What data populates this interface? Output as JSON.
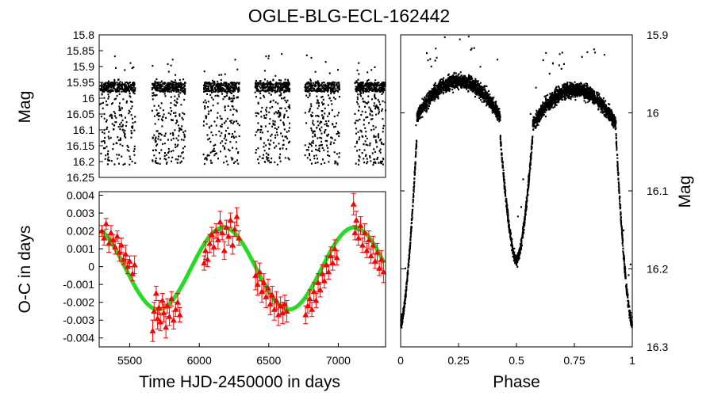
{
  "figure": {
    "title": "OGLE-BLG-ECL-162442"
  },
  "chart_data": [
    {
      "type": "scatter",
      "panel": "light-curve-time",
      "xlabel": "",
      "ylabel": "Mag",
      "xlim": [
        5280,
        7340
      ],
      "ylim": [
        16.25,
        15.8
      ],
      "y_inverted": true,
      "y_ticks": [
        "15.8",
        "15.85",
        "15.9",
        "15.95",
        "16",
        "16.05",
        "16.1",
        "16.15",
        "16.2",
        "16.25"
      ],
      "point_color": "#000000",
      "seasons": [
        {
          "x_start": 5285,
          "x_end": 5540
        },
        {
          "x_start": 5660,
          "x_end": 5900
        },
        {
          "x_start": 6030,
          "x_end": 6290
        },
        {
          "x_start": 6400,
          "x_end": 6650
        },
        {
          "x_start": 6760,
          "x_end": 7010
        },
        {
          "x_start": 7120,
          "x_end": 7340
        }
      ],
      "mag_range": [
        15.94,
        16.21
      ]
    },
    {
      "type": "scatter",
      "panel": "eclipse-timing",
      "xlabel": "Time HJD-2450000 in days",
      "ylabel": "O-C in days",
      "xlim": [
        5280,
        7340
      ],
      "ylim": [
        -0.0045,
        0.0042
      ],
      "x_ticks": [
        "5500",
        "6000",
        "6500",
        "7000"
      ],
      "y_ticks": [
        "0.004",
        "0.003",
        "0.002",
        "0.001",
        "0",
        "-0.001",
        "-0.002",
        "-0.003",
        "-0.004"
      ],
      "fit_color": "#22dd22",
      "point_color": "#ff0000",
      "fit": {
        "name": "",
        "amplitude": 0.0023,
        "period_days": 940,
        "peak_x": 6175,
        "offset": -0.0001
      },
      "points": [
        {
          "x": 5300,
          "y": 0.002,
          "err": 0.0003
        },
        {
          "x": 5315,
          "y": 0.0016,
          "err": 0.0004
        },
        {
          "x": 5330,
          "y": 0.0024,
          "err": 0.0003
        },
        {
          "x": 5350,
          "y": 0.0013,
          "err": 0.0005
        },
        {
          "x": 5365,
          "y": 0.0019,
          "err": 0.0004
        },
        {
          "x": 5380,
          "y": 0.0015,
          "err": 0.0003
        },
        {
          "x": 5395,
          "y": 0.0011,
          "err": 0.0004
        },
        {
          "x": 5410,
          "y": 0.0017,
          "err": 0.0003
        },
        {
          "x": 5425,
          "y": 0.0008,
          "err": 0.0005
        },
        {
          "x": 5440,
          "y": 0.0012,
          "err": 0.0004
        },
        {
          "x": 5455,
          "y": 0.0004,
          "err": 0.0003
        },
        {
          "x": 5470,
          "y": 0.0007,
          "err": 0.0005
        },
        {
          "x": 5485,
          "y": 0.0,
          "err": 0.0004
        },
        {
          "x": 5500,
          "y": 0.0003,
          "err": 0.0003
        },
        {
          "x": 5520,
          "y": -0.0004,
          "err": 0.0004
        },
        {
          "x": 5535,
          "y": 0.0001,
          "err": 0.0005
        },
        {
          "x": 5665,
          "y": -0.0036,
          "err": 0.0006
        },
        {
          "x": 5675,
          "y": -0.0025,
          "err": 0.0005
        },
        {
          "x": 5690,
          "y": -0.0015,
          "err": 0.0004
        },
        {
          "x": 5700,
          "y": -0.0029,
          "err": 0.0006
        },
        {
          "x": 5710,
          "y": -0.0023,
          "err": 0.0004
        },
        {
          "x": 5720,
          "y": -0.0031,
          "err": 0.0005
        },
        {
          "x": 5735,
          "y": -0.0019,
          "err": 0.0004
        },
        {
          "x": 5745,
          "y": -0.0026,
          "err": 0.0005
        },
        {
          "x": 5760,
          "y": -0.0034,
          "err": 0.0006
        },
        {
          "x": 5770,
          "y": -0.0022,
          "err": 0.0004
        },
        {
          "x": 5785,
          "y": -0.0028,
          "err": 0.0005
        },
        {
          "x": 5800,
          "y": -0.0018,
          "err": 0.0004
        },
        {
          "x": 5815,
          "y": -0.003,
          "err": 0.0005
        },
        {
          "x": 5830,
          "y": -0.0024,
          "err": 0.0004
        },
        {
          "x": 5845,
          "y": -0.002,
          "err": 0.0005
        },
        {
          "x": 5860,
          "y": -0.0027,
          "err": 0.0004
        },
        {
          "x": 6035,
          "y": 0.0002,
          "err": 0.0004
        },
        {
          "x": 6045,
          "y": 0.0009,
          "err": 0.0005
        },
        {
          "x": 6060,
          "y": 0.0004,
          "err": 0.0004
        },
        {
          "x": 6075,
          "y": 0.0013,
          "err": 0.0005
        },
        {
          "x": 6090,
          "y": 0.0018,
          "err": 0.0004
        },
        {
          "x": 6105,
          "y": 0.0011,
          "err": 0.0005
        },
        {
          "x": 6120,
          "y": 0.002,
          "err": 0.0004
        },
        {
          "x": 6135,
          "y": 0.0015,
          "err": 0.0005
        },
        {
          "x": 6150,
          "y": 0.0025,
          "err": 0.0006
        },
        {
          "x": 6165,
          "y": 0.0019,
          "err": 0.0004
        },
        {
          "x": 6180,
          "y": 0.0009,
          "err": 0.0005
        },
        {
          "x": 6195,
          "y": 0.0022,
          "err": 0.0004
        },
        {
          "x": 6210,
          "y": 0.0017,
          "err": 0.0005
        },
        {
          "x": 6225,
          "y": 0.0026,
          "err": 0.0004
        },
        {
          "x": 6240,
          "y": 0.0012,
          "err": 0.0005
        },
        {
          "x": 6255,
          "y": 0.0021,
          "err": 0.0004
        },
        {
          "x": 6270,
          "y": 0.0028,
          "err": 0.0005
        },
        {
          "x": 6285,
          "y": 0.0016,
          "err": 0.0004
        },
        {
          "x": 6405,
          "y": -0.0005,
          "err": 0.0008
        },
        {
          "x": 6420,
          "y": -0.001,
          "err": 0.0006
        },
        {
          "x": 6435,
          "y": -0.0003,
          "err": 0.0005
        },
        {
          "x": 6450,
          "y": -0.0014,
          "err": 0.0006
        },
        {
          "x": 6465,
          "y": -0.0009,
          "err": 0.0005
        },
        {
          "x": 6480,
          "y": -0.0017,
          "err": 0.0006
        },
        {
          "x": 6495,
          "y": -0.0012,
          "err": 0.0005
        },
        {
          "x": 6510,
          "y": -0.0021,
          "err": 0.0006
        },
        {
          "x": 6525,
          "y": -0.0016,
          "err": 0.0005
        },
        {
          "x": 6540,
          "y": -0.0024,
          "err": 0.0006
        },
        {
          "x": 6555,
          "y": -0.0019,
          "err": 0.0005
        },
        {
          "x": 6570,
          "y": -0.0027,
          "err": 0.0006
        },
        {
          "x": 6585,
          "y": -0.0022,
          "err": 0.0005
        },
        {
          "x": 6600,
          "y": -0.0026,
          "err": 0.0006
        },
        {
          "x": 6615,
          "y": -0.0021,
          "err": 0.0005
        },
        {
          "x": 6630,
          "y": -0.0025,
          "err": 0.0006
        },
        {
          "x": 6765,
          "y": -0.0027,
          "err": 0.0005
        },
        {
          "x": 6780,
          "y": -0.0022,
          "err": 0.0004
        },
        {
          "x": 6795,
          "y": -0.0018,
          "err": 0.0005
        },
        {
          "x": 6810,
          "y": -0.0024,
          "err": 0.0004
        },
        {
          "x": 6825,
          "y": -0.0014,
          "err": 0.0005
        },
        {
          "x": 6840,
          "y": -0.0019,
          "err": 0.0004
        },
        {
          "x": 6855,
          "y": -0.0009,
          "err": 0.0005
        },
        {
          "x": 6870,
          "y": -0.0013,
          "err": 0.0004
        },
        {
          "x": 6885,
          "y": -0.0004,
          "err": 0.0005
        },
        {
          "x": 6900,
          "y": -0.0008,
          "err": 0.0004
        },
        {
          "x": 6915,
          "y": 0.0001,
          "err": 0.0005
        },
        {
          "x": 6930,
          "y": -0.0003,
          "err": 0.0004
        },
        {
          "x": 6945,
          "y": 0.0006,
          "err": 0.0005
        },
        {
          "x": 6960,
          "y": 0.0002,
          "err": 0.0004
        },
        {
          "x": 6975,
          "y": 0.001,
          "err": 0.0005
        },
        {
          "x": 6990,
          "y": 0.0005,
          "err": 0.0004
        },
        {
          "x": 7110,
          "y": 0.0035,
          "err": 0.0006
        },
        {
          "x": 7120,
          "y": 0.0019,
          "err": 0.0004
        },
        {
          "x": 7130,
          "y": 0.0026,
          "err": 0.0005
        },
        {
          "x": 7145,
          "y": 0.0016,
          "err": 0.0004
        },
        {
          "x": 7160,
          "y": 0.0023,
          "err": 0.0005
        },
        {
          "x": 7175,
          "y": 0.0012,
          "err": 0.0004
        },
        {
          "x": 7190,
          "y": 0.0019,
          "err": 0.0005
        },
        {
          "x": 7205,
          "y": 0.0009,
          "err": 0.0004
        },
        {
          "x": 7220,
          "y": 0.0015,
          "err": 0.0005
        },
        {
          "x": 7235,
          "y": 0.0006,
          "err": 0.0004
        },
        {
          "x": 7250,
          "y": 0.0012,
          "err": 0.0005
        },
        {
          "x": 7265,
          "y": 0.0003,
          "err": 0.0004
        },
        {
          "x": 7280,
          "y": 0.0008,
          "err": 0.0005
        },
        {
          "x": 7295,
          "y": -0.0001,
          "err": 0.0004
        },
        {
          "x": 7310,
          "y": 0.0004,
          "err": 0.0005
        },
        {
          "x": 7325,
          "y": -0.0003,
          "err": 0.0006
        }
      ]
    },
    {
      "type": "scatter",
      "panel": "phased-light-curve",
      "xlabel": "Phase",
      "ylabel": "Mag",
      "y_axis_side": "right",
      "xlim": [
        0,
        1
      ],
      "ylim": [
        16.3,
        15.9
      ],
      "y_inverted": true,
      "x_ticks": [
        "0",
        "0.25",
        "0.5",
        "0.75",
        "1"
      ],
      "y_ticks": [
        "15.9",
        "16",
        "16.1",
        "16.2",
        "16.3"
      ],
      "point_color": "#000000",
      "model": {
        "max_mag_phase_025": 15.96,
        "max_mag_phase_075": 15.97,
        "primary_min_mag": 16.27,
        "secondary_min_mag": 16.19,
        "eclipse_half_width_phase": 0.07
      }
    }
  ]
}
